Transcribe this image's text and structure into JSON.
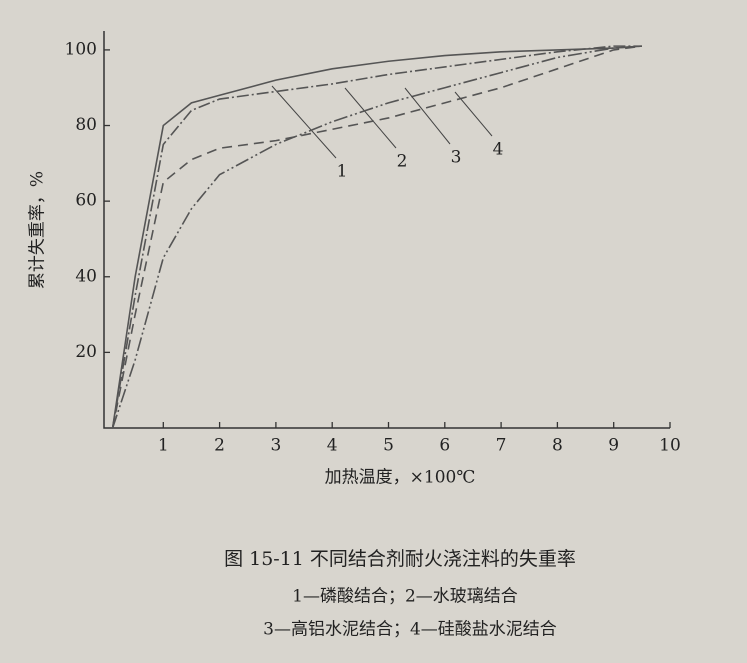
{
  "chart_data": {
    "type": "line",
    "x_label": "加热温度，×100℃",
    "y_label": "累计失重率，%",
    "caption": "图 15-11    不同结合剂耐火浇注料的失重率",
    "legend_lines": [
      "1—磷酸结合；2—水玻璃结合",
      "3—高铝水泥结合；4—硅酸盐水泥结合"
    ],
    "x": [
      0.1,
      0.5,
      1,
      1.5,
      2,
      3,
      4,
      5,
      6,
      7,
      8,
      9,
      9.5
    ],
    "series": [
      {
        "name": "1",
        "color": "#555",
        "values": [
          0,
          40,
          80,
          86,
          88,
          92,
          95,
          97,
          98.5,
          99.5,
          100,
          100.5,
          101
        ]
      },
      {
        "name": "2",
        "color": "#555",
        "values": [
          0,
          35,
          75,
          84,
          87,
          89,
          91,
          93.5,
          95.5,
          97.5,
          99.5,
          101,
          101
        ]
      },
      {
        "name": "3",
        "color": "#555",
        "values": [
          0,
          18,
          45,
          58,
          67,
          75,
          81,
          86,
          90,
          94,
          98,
          100.5,
          101
        ]
      },
      {
        "name": "4",
        "color": "#555",
        "values": [
          0,
          30,
          65,
          71,
          74,
          76,
          79,
          82,
          86,
          90,
          95,
          100,
          101
        ]
      }
    ],
    "xlim": [
      0,
      10
    ],
    "xticks": [
      1,
      2,
      3,
      4,
      5,
      6,
      7,
      8,
      9,
      10
    ],
    "ylim": [
      0,
      105
    ],
    "yticks": [
      20,
      40,
      60,
      80,
      100
    ]
  }
}
